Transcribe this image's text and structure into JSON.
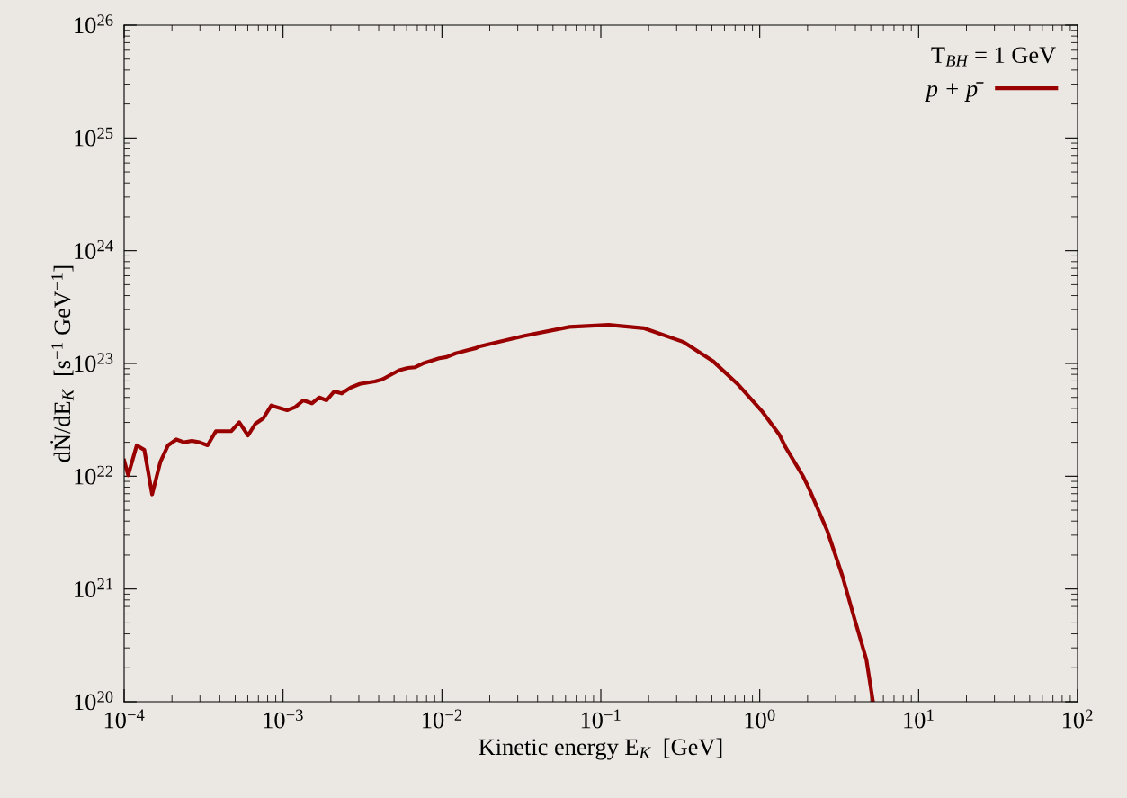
{
  "chart_data": {
    "type": "line",
    "xlabel": "Kinetic energy E$_{K}$  [GeV]",
    "ylabel": "dṄ/dE$_{K}$  [s$^{−1}$ GeV$^{−1}$]",
    "legend_title": "T$_{BH}$ = 1 GeV",
    "log": "xy",
    "legend": "top right",
    "grid": false,
    "marker": "none",
    "line_style": "solid",
    "xlim": [
      0.0001,
      100
    ],
    "ylim": [
      1e+20,
      1e+26
    ],
    "xticks": [
      {
        "value": 0.0001,
        "label": "10$^{−4}$"
      },
      {
        "value": 0.001,
        "label": "10$^{−3}$"
      },
      {
        "value": 0.01,
        "label": "10$^{−2}$"
      },
      {
        "value": 0.1,
        "label": "10$^{−1}$"
      },
      {
        "value": 1,
        "label": "10$^{0}$"
      },
      {
        "value": 10,
        "label": "10$^{1}$"
      },
      {
        "value": 100,
        "label": "10$^{2}$"
      }
    ],
    "yticks": [
      {
        "value": 1e+20,
        "label": "10$^{20}$"
      },
      {
        "value": 1e+21,
        "label": "10$^{21}$"
      },
      {
        "value": 1e+22,
        "label": "10$^{22}$"
      },
      {
        "value": 1e+23,
        "label": "10$^{23}$"
      },
      {
        "value": 1e+24,
        "label": "10$^{24}$"
      },
      {
        "value": 1e+25,
        "label": "10$^{25}$"
      },
      {
        "value": 1e+26,
        "label": "10$^{26}$"
      }
    ],
    "series": [
      {
        "name": "p + p̄",
        "color": "#990000",
        "x": [
          0.0001,
          0.000106,
          0.00012,
          0.000134,
          0.00015,
          0.000169,
          0.000189,
          0.000213,
          0.000239,
          0.000267,
          0.000298,
          0.000335,
          0.000378,
          0.000473,
          0.00053,
          0.000602,
          0.00067,
          0.000751,
          0.000844,
          0.00106,
          0.00119,
          0.00134,
          0.00152,
          0.00169,
          0.00188,
          0.0021,
          0.00234,
          0.00267,
          0.00304,
          0.00378,
          0.00421,
          0.00535,
          0.00609,
          0.00679,
          0.00774,
          0.0096,
          0.0107,
          0.0122,
          0.0145,
          0.0164,
          0.0173,
          0.0331,
          0.0635,
          0.112,
          0.188,
          0.331,
          0.511,
          0.724,
          1.03,
          1.33,
          1.45,
          1.88,
          2.05,
          2.66,
          3.31,
          3.94,
          4.69,
          5.16
        ],
        "values": [
          1.38e+22,
          1.02e+22,
          1.88e+22,
          1.71e+22,
          6.9e+21,
          1.34e+22,
          1.88e+22,
          2.12e+22,
          2e+22,
          2.06e+22,
          2e+22,
          1.88e+22,
          2.51e+22,
          2.51e+22,
          3.01e+22,
          2.3e+22,
          2.92e+22,
          3.26e+22,
          4.24e+22,
          3.85e+22,
          4.09e+22,
          4.71e+22,
          4.43e+22,
          5e+22,
          4.71e+22,
          5.66e+22,
          5.42e+22,
          6.12e+22,
          6.59e+22,
          6.92e+22,
          7.22e+22,
          8.67e+22,
          9.12e+22,
          9.25e+22,
          1.01e+23,
          1.11e+23,
          1.14e+23,
          1.23e+23,
          1.31e+23,
          1.37e+23,
          1.42e+23,
          1.76e+23,
          2.11e+23,
          2.2e+23,
          2.05e+23,
          1.55e+23,
          1.04e+23,
          6.59e+22,
          3.79e+22,
          2.33e+22,
          1.82e+22,
          9.9e+21,
          7.7e+21,
          3.28e+21,
          1.31e+21,
          5.5e+20,
          2.36e+20,
          1e+20
        ]
      }
    ]
  }
}
